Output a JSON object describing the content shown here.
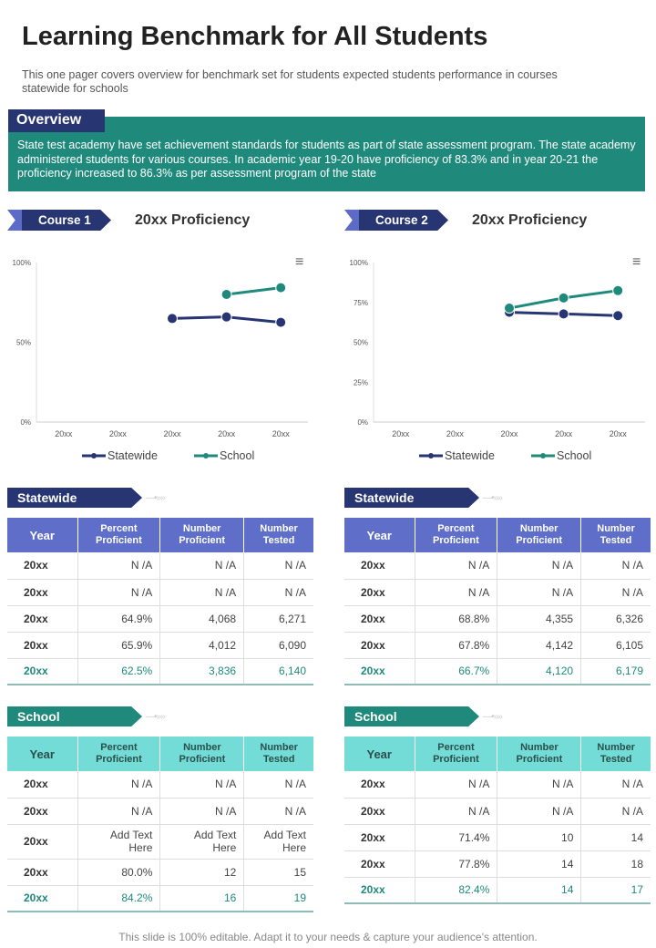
{
  "title": "Learning Benchmark for All Students",
  "subtitle": "This one pager covers overview  for benchmark set for students expected students performance  in courses statewide for schools",
  "overview": {
    "label": "Overview",
    "text": "State test academy have set achievement standards for students as part of state assessment program. The state academy administered students for various courses. In academic year 19-20 have proficiency of 83.3% and in year 20-21 the proficiency increased to 86.3% as per assessment program of the state"
  },
  "colors": {
    "navy": "#273572",
    "teal": "#1f8a7b",
    "statewide_header": "#5e6ec9",
    "school_header": "#74dcd6"
  },
  "courses": [
    {
      "label": "Course 1",
      "heading": "20xx Proficiency",
      "statewide": {
        "label": "Statewide",
        "columns": [
          "Year",
          "Percent Proficient",
          "Number Proficient",
          "Number Tested"
        ],
        "rows": [
          [
            "20xx",
            "N /A",
            "N /A",
            "N /A"
          ],
          [
            "20xx",
            "N /A",
            "N /A",
            "N /A"
          ],
          [
            "20xx",
            "64.9%",
            "4,068",
            "6,271"
          ],
          [
            "20xx",
            "65.9%",
            "4,012",
            "6,090"
          ],
          [
            "20xx",
            "62.5%",
            "3,836",
            "6,140"
          ]
        ]
      },
      "school": {
        "label": "School",
        "columns": [
          "Year",
          "Percent Proficient",
          "Number Proficient",
          "Number Tested"
        ],
        "rows": [
          [
            "20xx",
            "N /A",
            "N /A",
            "N /A"
          ],
          [
            "20xx",
            "N /A",
            "N /A",
            "N /A"
          ],
          [
            "20xx",
            "Add Text Here",
            "Add Text Here",
            "Add Text Here"
          ],
          [
            "20xx",
            "80.0%",
            "12",
            "15"
          ],
          [
            "20xx",
            "84.2%",
            "16",
            "19"
          ]
        ]
      }
    },
    {
      "label": "Course 2",
      "heading": "20xx Proficiency",
      "statewide": {
        "label": "Statewide",
        "columns": [
          "Year",
          "Percent Proficient",
          "Number Proficient",
          "Number Tested"
        ],
        "rows": [
          [
            "20xx",
            "N /A",
            "N /A",
            "N /A"
          ],
          [
            "20xx",
            "N /A",
            "N /A",
            "N /A"
          ],
          [
            "20xx",
            "68.8%",
            "4,355",
            "6,326"
          ],
          [
            "20xx",
            "67.8%",
            "4,142",
            "6,105"
          ],
          [
            "20xx",
            "66.7%",
            "4,120",
            "6,179"
          ]
        ]
      },
      "school": {
        "label": "School",
        "columns": [
          "Year",
          "Percent Proficient",
          "Number Proficient",
          "Number Tested"
        ],
        "rows": [
          [
            "20xx",
            "N /A",
            "N /A",
            "N /A"
          ],
          [
            "20xx",
            "N /A",
            "N /A",
            "N /A"
          ],
          [
            "20xx",
            "71.4%",
            "10",
            "14"
          ],
          [
            "20xx",
            "77.8%",
            "14",
            "18"
          ],
          [
            "20xx",
            "82.4%",
            "14",
            "17"
          ]
        ]
      }
    }
  ],
  "chart_data": [
    {
      "type": "line",
      "categories": [
        "20xx",
        "20xx",
        "20xx",
        "20xx",
        "20xx"
      ],
      "ylim": [
        0,
        100
      ],
      "yticks": [
        "0%",
        "50%",
        "100%"
      ],
      "ytick_values": [
        0,
        50,
        100
      ],
      "legend": "bottom",
      "series": [
        {
          "name": "Statewide",
          "color": "#273572",
          "values": [
            null,
            null,
            64.9,
            65.9,
            62.5
          ]
        },
        {
          "name": "School",
          "color": "#1f8a7b",
          "values": [
            null,
            null,
            null,
            80.0,
            84.2
          ]
        }
      ]
    },
    {
      "type": "line",
      "categories": [
        "20xx",
        "20xx",
        "20xx",
        "20xx",
        "20xx"
      ],
      "ylim": [
        0,
        100
      ],
      "yticks": [
        "0%",
        "25%",
        "50%",
        "75%",
        "100%"
      ],
      "ytick_values": [
        0,
        25,
        50,
        75,
        100
      ],
      "legend": "bottom",
      "series": [
        {
          "name": "Statewide",
          "color": "#273572",
          "values": [
            null,
            null,
            68.8,
            67.8,
            66.7
          ]
        },
        {
          "name": "School",
          "color": "#1f8a7b",
          "values": [
            null,
            null,
            71.4,
            77.8,
            82.4
          ]
        }
      ]
    }
  ],
  "footer": "This slide is 100% editable. Adapt it to your needs & capture your audience’s attention."
}
